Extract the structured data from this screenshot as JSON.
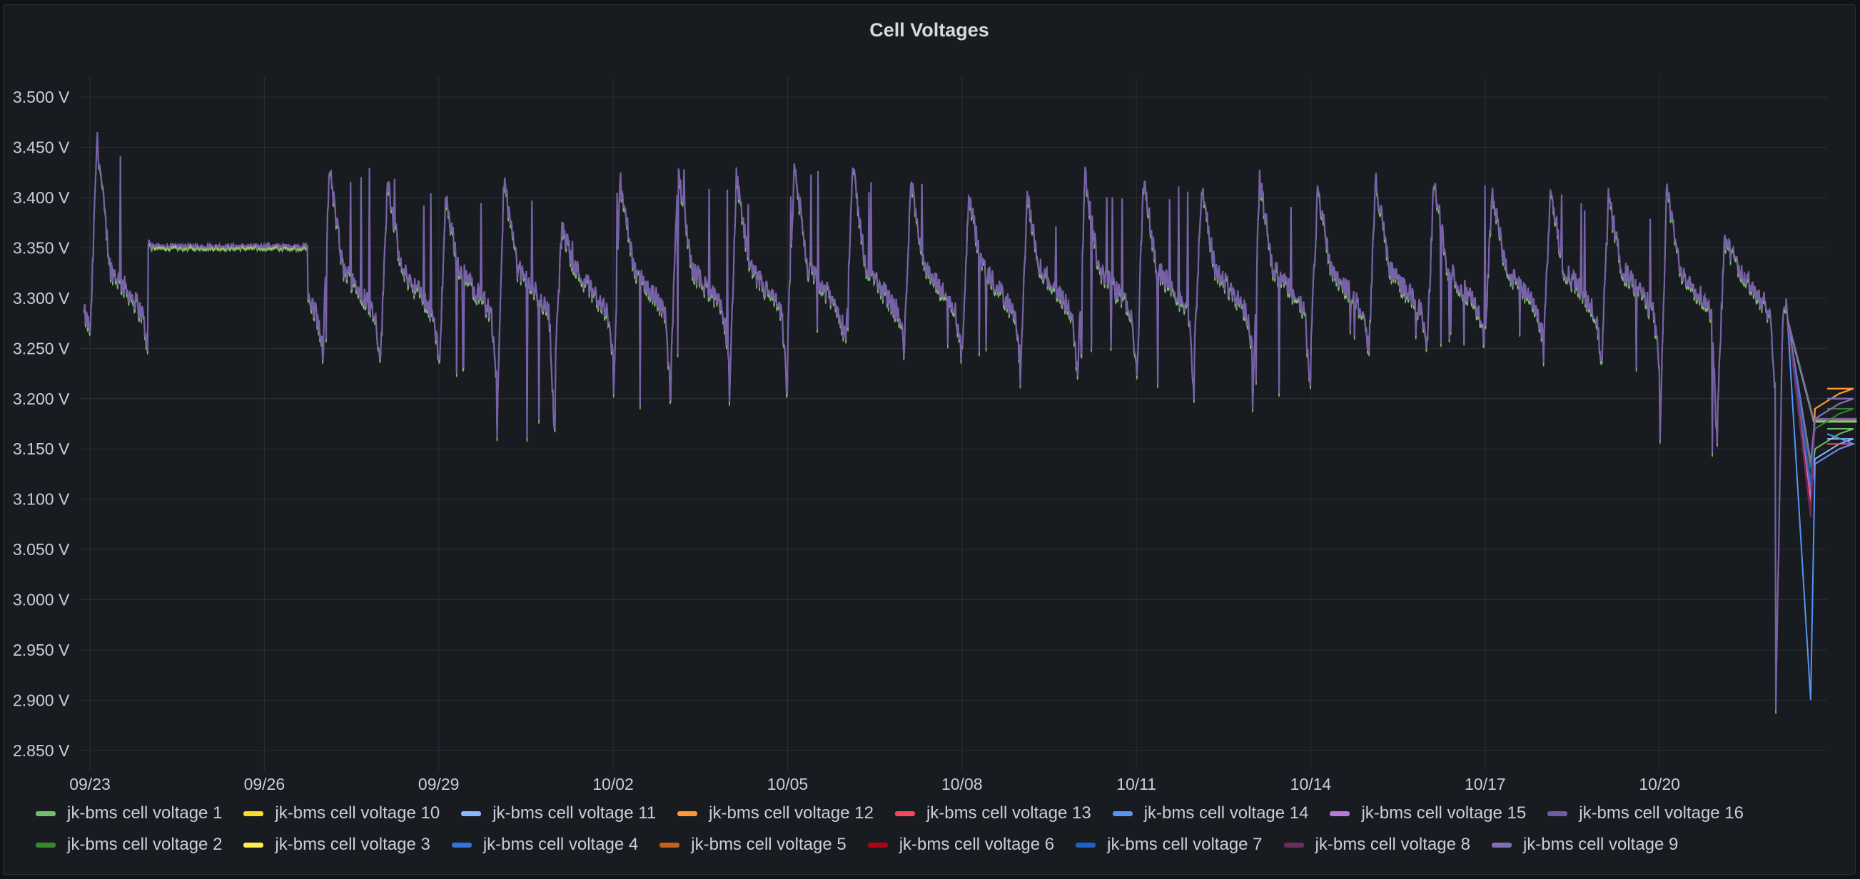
{
  "panel": {
    "title": "Cell Voltages"
  },
  "colors": {
    "background": "#181b1f",
    "grid": "#2c2f36",
    "text": "#ccccdc",
    "main_series": "#7762a8"
  },
  "chart_data": {
    "type": "line",
    "title": "Cell Voltages",
    "xlabel": "",
    "ylabel": "",
    "x_range": [
      "09/22",
      "10/24"
    ],
    "ylim": [
      2.83,
      3.52
    ],
    "y_ticks": [
      "3.500 V",
      "3.450 V",
      "3.400 V",
      "3.350 V",
      "3.300 V",
      "3.250 V",
      "3.200 V",
      "3.150 V",
      "3.100 V",
      "3.050 V",
      "3.000 V",
      "2.950 V",
      "2.900 V",
      "2.850 V"
    ],
    "y_tick_values": [
      3.5,
      3.45,
      3.4,
      3.35,
      3.3,
      3.25,
      3.2,
      3.15,
      3.1,
      3.05,
      3.0,
      2.95,
      2.9,
      2.85
    ],
    "x_ticks": [
      "09/23",
      "09/26",
      "09/29",
      "10/02",
      "10/05",
      "10/08",
      "10/11",
      "10/14",
      "10/17",
      "10/20"
    ],
    "grid": true,
    "legend_position": "bottom",
    "series": [
      {
        "name": "jk-bms cell voltage 1",
        "color": "#73bf69"
      },
      {
        "name": "jk-bms cell voltage 10",
        "color": "#fade2a"
      },
      {
        "name": "jk-bms cell voltage 11",
        "color": "#8ab8ff"
      },
      {
        "name": "jk-bms cell voltage 12",
        "color": "#ff9830"
      },
      {
        "name": "jk-bms cell voltage 13",
        "color": "#f2495c"
      },
      {
        "name": "jk-bms cell voltage 14",
        "color": "#5794f2"
      },
      {
        "name": "jk-bms cell voltage 15",
        "color": "#b877d9"
      },
      {
        "name": "jk-bms cell voltage 16",
        "color": "#705da0"
      },
      {
        "name": "jk-bms cell voltage 2",
        "color": "#37872d"
      },
      {
        "name": "jk-bms cell voltage 3",
        "color": "#ffee52"
      },
      {
        "name": "jk-bms cell voltage 4",
        "color": "#3274d9"
      },
      {
        "name": "jk-bms cell voltage 5",
        "color": "#c4621a"
      },
      {
        "name": "jk-bms cell voltage 6",
        "color": "#ad0317"
      },
      {
        "name": "jk-bms cell voltage 7",
        "color": "#1f60c4"
      },
      {
        "name": "jk-bms cell voltage 8",
        "color": "#6b2d5c"
      },
      {
        "name": "jk-bms cell voltage 9",
        "color": "#806eb7"
      }
    ],
    "daily_peaks": [
      {
        "date": "09/23",
        "min": 3.25,
        "max": 3.46
      },
      {
        "date": "09/24",
        "min": 3.35,
        "max": 3.36
      },
      {
        "date": "09/25",
        "min": 3.35,
        "max": 3.36
      },
      {
        "date": "09/26",
        "min": 3.25,
        "max": 3.44
      },
      {
        "date": "09/27",
        "min": 3.24,
        "max": 3.43
      },
      {
        "date": "09/28",
        "min": 3.24,
        "max": 3.42
      },
      {
        "date": "09/29",
        "min": 3.22,
        "max": 3.4
      },
      {
        "date": "09/30",
        "min": 3.16,
        "max": 3.42
      },
      {
        "date": "10/01",
        "min": 3.24,
        "max": 3.37
      },
      {
        "date": "10/02",
        "min": 3.19,
        "max": 3.42
      },
      {
        "date": "10/03",
        "min": 3.24,
        "max": 3.43
      },
      {
        "date": "10/04",
        "min": 3.2,
        "max": 3.42
      },
      {
        "date": "10/05",
        "min": 3.26,
        "max": 3.43
      },
      {
        "date": "10/06",
        "min": 3.26,
        "max": 3.43
      },
      {
        "date": "10/07",
        "min": 3.24,
        "max": 3.42
      },
      {
        "date": "10/08",
        "min": 3.24,
        "max": 3.4
      },
      {
        "date": "10/09",
        "min": 3.21,
        "max": 3.4
      },
      {
        "date": "10/10",
        "min": 3.24,
        "max": 3.42
      },
      {
        "date": "10/11",
        "min": 3.2,
        "max": 3.42
      },
      {
        "date": "10/12",
        "min": 3.25,
        "max": 3.41
      },
      {
        "date": "10/13",
        "min": 3.2,
        "max": 3.42
      },
      {
        "date": "10/14",
        "min": 3.25,
        "max": 3.41
      },
      {
        "date": "10/15",
        "min": 3.25,
        "max": 3.42
      },
      {
        "date": "10/16",
        "min": 3.25,
        "max": 3.42
      },
      {
        "date": "10/17",
        "min": 3.26,
        "max": 3.41
      },
      {
        "date": "10/18",
        "min": 3.24,
        "max": 3.41
      },
      {
        "date": "10/19",
        "min": 3.23,
        "max": 3.4
      },
      {
        "date": "10/20",
        "min": 3.14,
        "max": 3.41
      },
      {
        "date": "10/21",
        "min": 3.2,
        "max": 3.36
      },
      {
        "date": "10/22",
        "min": 2.9,
        "max": 3.28
      }
    ],
    "end_values": {
      "jk-bms cell voltage 1": 3.17,
      "jk-bms cell voltage 2": 3.19,
      "jk-bms cell voltage 10": 3.21,
      "jk-bms cell voltage 11": 3.16,
      "jk-bms cell voltage 12": 3.21,
      "jk-bms cell voltage 13": 3.155,
      "jk-bms cell voltage 14": 3.155,
      "jk-bms cell voltage 3": 3.2,
      "jk-bms cell voltage 4": 3.2,
      "jk-bms cell voltage 5": 3.2,
      "jk-bms cell voltage 6": 3.2,
      "jk-bms cell voltage 7": 3.2,
      "jk-bms cell voltage 8": 3.2,
      "jk-bms cell voltage 9": 3.2,
      "jk-bms cell voltage 15": 3.2,
      "jk-bms cell voltage 16": 3.2
    }
  }
}
